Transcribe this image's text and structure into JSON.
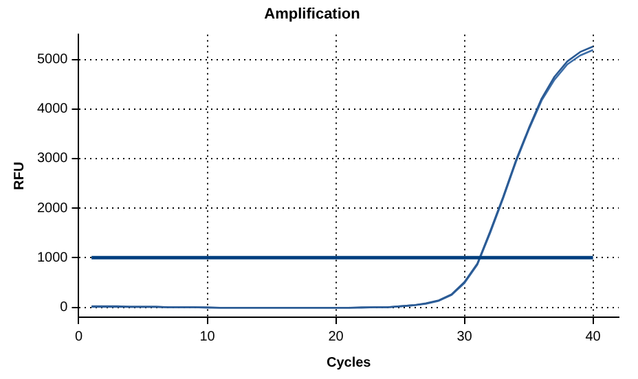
{
  "chart_data": {
    "type": "line",
    "title": "Amplification",
    "xlabel": "Cycles",
    "ylabel": "RFU",
    "x": [
      1,
      2,
      3,
      4,
      5,
      6,
      7,
      8,
      9,
      10,
      11,
      12,
      13,
      14,
      15,
      16,
      17,
      18,
      19,
      20,
      21,
      22,
      23,
      24,
      25,
      26,
      27,
      28,
      29,
      30,
      31,
      32,
      33,
      34,
      35,
      36,
      37,
      38,
      39,
      40
    ],
    "series": [
      {
        "color": "#2a5a94",
        "values": [
          20,
          20,
          20,
          10,
          10,
          10,
          0,
          0,
          0,
          0,
          -10,
          -10,
          -10,
          -10,
          -10,
          -10,
          -10,
          -10,
          -10,
          -10,
          -10,
          0,
          0,
          0,
          20,
          40,
          80,
          140,
          260,
          510,
          880,
          1530,
          2220,
          2960,
          3610,
          4210,
          4650,
          4960,
          5150,
          5260
        ]
      },
      {
        "color": "#3d6ea8",
        "values": [
          10,
          10,
          10,
          10,
          10,
          10,
          0,
          0,
          0,
          -10,
          -10,
          -10,
          -10,
          -10,
          -10,
          -10,
          -10,
          -10,
          -10,
          -10,
          -10,
          -10,
          0,
          0,
          20,
          40,
          70,
          130,
          250,
          490,
          860,
          1500,
          2190,
          2930,
          3580,
          4170,
          4590,
          4900,
          5080,
          5190
        ]
      }
    ],
    "xlim": [
      0,
      42
    ],
    "xticks": [
      0,
      10,
      20,
      30,
      40
    ],
    "ylim": [
      -200,
      5500
    ],
    "yticks": [
      0,
      1000,
      2000,
      3000,
      4000,
      5000
    ],
    "ref_lines": [
      {
        "axis": "y",
        "value": 1000,
        "color": "#003f7f"
      }
    ],
    "grid": true,
    "marker": "none",
    "line_style": "solid",
    "legend": false
  }
}
